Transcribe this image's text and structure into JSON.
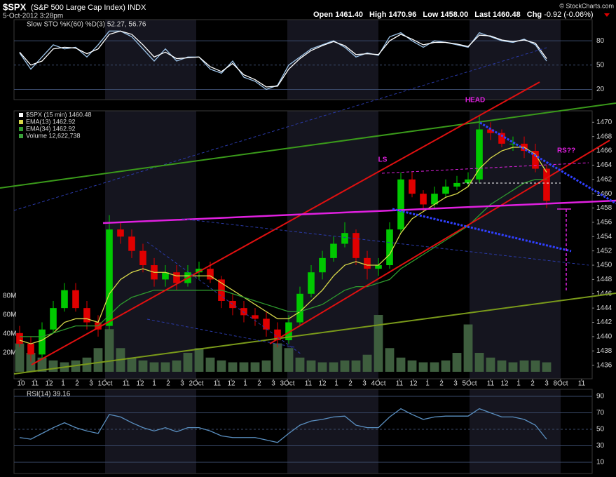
{
  "header": {
    "symbol": "$SPX",
    "name": "(S&P 500 Large Cap Index) INDX",
    "date": "5-Oct-2012 3:28pm",
    "quote": [
      {
        "label": "Open",
        "value": "1461.40"
      },
      {
        "label": "High",
        "value": "1470.96"
      },
      {
        "label": "Low",
        "value": "1458.00"
      },
      {
        "label": "Last",
        "value": "1460.48"
      },
      {
        "label": "Chg",
        "value": "-0.92 (-0.06%)"
      }
    ],
    "credit": "© StockCharts.com"
  },
  "chart_data": [
    {
      "type": "line",
      "title": "Slow STO %K(60) %D(3) 52.27, 56.76",
      "x": [
        0.4,
        1.2,
        2.0,
        2.8,
        3.6,
        4.4,
        5.2,
        6.0,
        6.8,
        7.6,
        8.4,
        9.2,
        10.0,
        10.8,
        11.6,
        12.4,
        13.2,
        14.0,
        14.8,
        15.6,
        16.4,
        17.2,
        18.0,
        18.8,
        19.6,
        20.4,
        21.2,
        22.0,
        22.8,
        23.6,
        24.4,
        25.2,
        26.0,
        26.8,
        27.6,
        28.4,
        29.2,
        30.0,
        30.8,
        31.6,
        32.4,
        33.2,
        34.0,
        34.8,
        35.6,
        36.4,
        37.2,
        38.0
      ],
      "xlim": [
        0,
        41.25
      ],
      "ylim": [
        7.4,
        106.1
      ],
      "yticks": [
        20,
        50,
        80
      ],
      "grid": true,
      "series": [
        {
          "color": "#9ec5ea",
          "values": [
            65,
            45,
            60,
            75,
            70,
            72,
            60,
            75,
            92,
            92,
            85,
            70,
            55,
            70,
            55,
            60,
            60,
            45,
            40,
            55,
            35,
            30,
            20,
            25,
            50,
            60,
            70,
            75,
            80,
            72,
            60,
            65,
            62,
            85,
            90,
            80,
            72,
            80,
            78,
            75,
            72,
            90,
            85,
            80,
            78,
            82,
            75,
            55
          ]
        },
        {
          "color": "#ffffff",
          "values": [
            66,
            50,
            55,
            70,
            72,
            71,
            64,
            70,
            88,
            92,
            88,
            75,
            60,
            66,
            58,
            59,
            60,
            48,
            42,
            52,
            38,
            32,
            23,
            24,
            45,
            58,
            68,
            74,
            79,
            74,
            63,
            64,
            63,
            80,
            88,
            82,
            75,
            78,
            78,
            76,
            73,
            87,
            86,
            81,
            79,
            81,
            77,
            58
          ]
        }
      ]
    },
    {
      "type": "candlestick",
      "x": [
        0.4,
        1.2,
        2.0,
        2.8,
        3.6,
        4.4,
        5.2,
        6.0,
        6.8,
        7.6,
        8.4,
        9.2,
        10.0,
        10.8,
        11.6,
        12.4,
        13.2,
        14.0,
        14.8,
        15.6,
        16.4,
        17.2,
        18.0,
        18.8,
        19.6,
        20.4,
        21.2,
        22.0,
        22.8,
        23.6,
        24.4,
        25.2,
        26.0,
        26.8,
        27.6,
        28.4,
        29.2,
        30.0,
        30.8,
        31.6,
        32.4,
        33.2,
        34.0,
        34.8,
        35.6,
        36.4,
        37.2,
        38.0
      ],
      "xlim": [
        0,
        41.25
      ],
      "ylim": [
        1434.1,
        1471.6
      ],
      "xticks": [
        {
          "value": 0.5,
          "label": "10"
        },
        {
          "value": 1.5,
          "label": "11"
        },
        {
          "value": 2.5,
          "label": "12"
        },
        {
          "value": 3.5,
          "label": "1"
        },
        {
          "value": 4.5,
          "label": "2"
        },
        {
          "value": 5.5,
          "label": "3"
        },
        {
          "value": 6.5,
          "label": "1Oct"
        },
        {
          "value": 8,
          "label": "11"
        },
        {
          "value": 9,
          "label": "12"
        },
        {
          "value": 10,
          "label": "1"
        },
        {
          "value": 11,
          "label": "2"
        },
        {
          "value": 12,
          "label": "3"
        },
        {
          "value": 13,
          "label": "2Oct"
        },
        {
          "value": 14.5,
          "label": "11"
        },
        {
          "value": 15.5,
          "label": "12"
        },
        {
          "value": 16.5,
          "label": "1"
        },
        {
          "value": 17.5,
          "label": "2"
        },
        {
          "value": 18.5,
          "label": "3"
        },
        {
          "value": 19.5,
          "label": "3Oct"
        },
        {
          "value": 21,
          "label": "11"
        },
        {
          "value": 22,
          "label": "12"
        },
        {
          "value": 23,
          "label": "1"
        },
        {
          "value": 24,
          "label": "2"
        },
        {
          "value": 25,
          "label": "3"
        },
        {
          "value": 26,
          "label": "4Oct"
        },
        {
          "value": 27.5,
          "label": "11"
        },
        {
          "value": 28.5,
          "label": "12"
        },
        {
          "value": 29.5,
          "label": "1"
        },
        {
          "value": 30.5,
          "label": "2"
        },
        {
          "value": 31.5,
          "label": "3"
        },
        {
          "value": 32.5,
          "label": "5Oct"
        },
        {
          "value": 34,
          "label": "11"
        },
        {
          "value": 35,
          "label": "12"
        },
        {
          "value": 36,
          "label": "1"
        },
        {
          "value": 37,
          "label": "2"
        },
        {
          "value": 38,
          "label": "3"
        },
        {
          "value": 39,
          "label": "8Oct"
        },
        {
          "value": 40.5,
          "label": "11"
        }
      ],
      "yticks": [
        1436,
        1438,
        1440,
        1442,
        1444,
        1446,
        1448,
        1450,
        1452,
        1454,
        1456,
        1458,
        1460,
        1462,
        1464,
        1466,
        1468,
        1470
      ],
      "grid": false,
      "y2lim": [
        -7.4,
        275.6
      ],
      "y2ticks": [
        {
          "value": 20,
          "label": "20M"
        },
        {
          "value": 40,
          "label": "40M"
        },
        {
          "value": 60,
          "label": "60M"
        },
        {
          "value": 80,
          "label": "80M"
        }
      ],
      "ohlc": {
        "name": "$SPX (15 min) 1460.48",
        "up_color": "#00c800",
        "down_color": "#e00000",
        "open": [
          1440.5,
          1439,
          1437.5,
          1441,
          1444,
          1446.5,
          1444,
          1442,
          1441.5,
          1455,
          1454,
          1452,
          1450,
          1448,
          1449,
          1447.5,
          1449,
          1449.5,
          1448,
          1445,
          1444,
          1443,
          1442.5,
          1441,
          1439.5,
          1442,
          1446,
          1449,
          1451,
          1453,
          1454.5,
          1451,
          1449.5,
          1450,
          1455,
          1462,
          1460,
          1458.5,
          1460,
          1461,
          1461.5,
          1462,
          1469,
          1468.5,
          1467,
          1467,
          1466,
          1463.5
        ],
        "high": [
          1441.5,
          1440,
          1442,
          1445,
          1447.5,
          1447.5,
          1445,
          1443,
          1457,
          1456,
          1455,
          1453,
          1451,
          1450,
          1450,
          1450,
          1450.5,
          1450.5,
          1448.5,
          1446,
          1445,
          1444,
          1443.5,
          1442,
          1443,
          1447,
          1450,
          1452,
          1454,
          1456,
          1455,
          1452,
          1451,
          1456,
          1463,
          1463,
          1460.5,
          1461,
          1462,
          1462.5,
          1463,
          1471,
          1470,
          1469,
          1468,
          1468,
          1467,
          1464
        ],
        "low": [
          1438.5,
          1436.5,
          1437,
          1440.5,
          1443.5,
          1443.5,
          1441,
          1440,
          1441,
          1453,
          1451,
          1449,
          1447,
          1447,
          1446.5,
          1447,
          1448,
          1447.5,
          1444,
          1443,
          1442,
          1441.5,
          1440,
          1438.5,
          1439,
          1441.5,
          1445.5,
          1448,
          1450.5,
          1452.5,
          1450,
          1448,
          1448.5,
          1449.5,
          1454.5,
          1459.5,
          1457.5,
          1458,
          1459.5,
          1460.5,
          1461,
          1461.5,
          1467.5,
          1466.5,
          1466,
          1465,
          1463,
          1458
        ],
        "close": [
          1439,
          1437.5,
          1441,
          1444,
          1446.5,
          1444,
          1442,
          1441,
          1455,
          1454,
          1452,
          1450,
          1448,
          1449,
          1447.5,
          1449,
          1449.5,
          1448,
          1445,
          1444,
          1443,
          1442.5,
          1441,
          1439.5,
          1442,
          1446,
          1449,
          1451,
          1453,
          1454.5,
          1451,
          1449.5,
          1450,
          1455,
          1462,
          1460,
          1458.5,
          1460,
          1461,
          1461.5,
          1462,
          1469,
          1468.5,
          1467,
          1467,
          1466,
          1463.5,
          1459
        ]
      },
      "series": [
        {
          "name": "EMA(13) 1462.92",
          "color": "#d8d84a",
          "values": [
            1439.5,
            1439,
            1439.5,
            1440.5,
            1442,
            1442.5,
            1442.5,
            1442,
            1446,
            1448,
            1449,
            1449.5,
            1449,
            1449,
            1448.5,
            1448.5,
            1448.5,
            1448.5,
            1447.5,
            1446.5,
            1445.5,
            1444.5,
            1443.5,
            1442.5,
            1442.5,
            1443.5,
            1445,
            1446.5,
            1448.5,
            1450,
            1450.5,
            1450,
            1450,
            1451.5,
            1454.5,
            1456.5,
            1457.5,
            1458.5,
            1459.5,
            1460,
            1461,
            1463.5,
            1465,
            1466,
            1466.5,
            1466.5,
            1465.5,
            1463
          ]
        },
        {
          "name": "EMA(34) 1462.92",
          "color": "#2e9b2e",
          "values": [
            1440,
            1440,
            1440,
            1440.5,
            1441,
            1441.5,
            1441.5,
            1441.5,
            1443,
            1444.5,
            1445.5,
            1446,
            1446.5,
            1446.5,
            1446.5,
            1446.5,
            1446.5,
            1446.5,
            1446.5,
            1446,
            1445.5,
            1445,
            1444.5,
            1444,
            1443.5,
            1443.5,
            1444,
            1444.5,
            1445.5,
            1446.5,
            1447,
            1447,
            1447.5,
            1448,
            1449.5,
            1450.5,
            1451.5,
            1452.5,
            1453.5,
            1454.5,
            1455.5,
            1457,
            1458.5,
            1459.5,
            1460.5,
            1461.5,
            1462,
            1462
          ]
        }
      ],
      "volume": {
        "name": "Volume 12,622,738",
        "color": "#3e5e3e",
        "axis": "y2",
        "values": [
          30,
          20,
          15,
          12,
          10,
          12,
          15,
          25,
          45,
          25,
          15,
          12,
          10,
          10,
          12,
          20,
          25,
          15,
          12,
          10,
          10,
          10,
          12,
          30,
          25,
          15,
          12,
          10,
          10,
          12,
          12,
          18,
          60,
          25,
          15,
          12,
          10,
          10,
          12,
          20,
          50,
          20,
          15,
          12,
          10,
          12,
          12,
          10
        ]
      },
      "annotations": [
        "HEAD",
        "LS",
        "RS??"
      ]
    },
    {
      "type": "line",
      "title": "RSI(14) 39.16",
      "x": [
        0.4,
        1.2,
        2.0,
        2.8,
        3.6,
        4.4,
        5.2,
        6.0,
        6.8,
        7.6,
        8.4,
        9.2,
        10.0,
        10.8,
        11.6,
        12.4,
        13.2,
        14.0,
        14.8,
        15.6,
        16.4,
        17.2,
        18.0,
        18.8,
        19.6,
        20.4,
        21.2,
        22.0,
        22.8,
        23.6,
        24.4,
        25.2,
        26.0,
        26.8,
        27.6,
        28.4,
        29.2,
        30.0,
        30.8,
        31.6,
        32.4,
        33.2,
        34.0,
        34.8,
        35.6,
        36.4,
        37.2,
        38.0
      ],
      "xlim": [
        0,
        41.25
      ],
      "ylim": [
        -3.6,
        98.5
      ],
      "yticks": [
        10,
        30,
        50,
        70,
        90
      ],
      "grid": true,
      "series": [
        {
          "color": "#5a8fc0",
          "values": [
            40,
            38,
            45,
            52,
            58,
            52,
            48,
            45,
            68,
            65,
            58,
            52,
            48,
            52,
            47,
            52,
            52,
            48,
            42,
            40,
            40,
            40,
            37,
            34,
            45,
            55,
            60,
            62,
            65,
            66,
            55,
            52,
            52,
            65,
            75,
            68,
            62,
            65,
            66,
            66,
            66,
            75,
            70,
            65,
            65,
            62,
            55,
            38
          ]
        }
      ]
    }
  ]
}
